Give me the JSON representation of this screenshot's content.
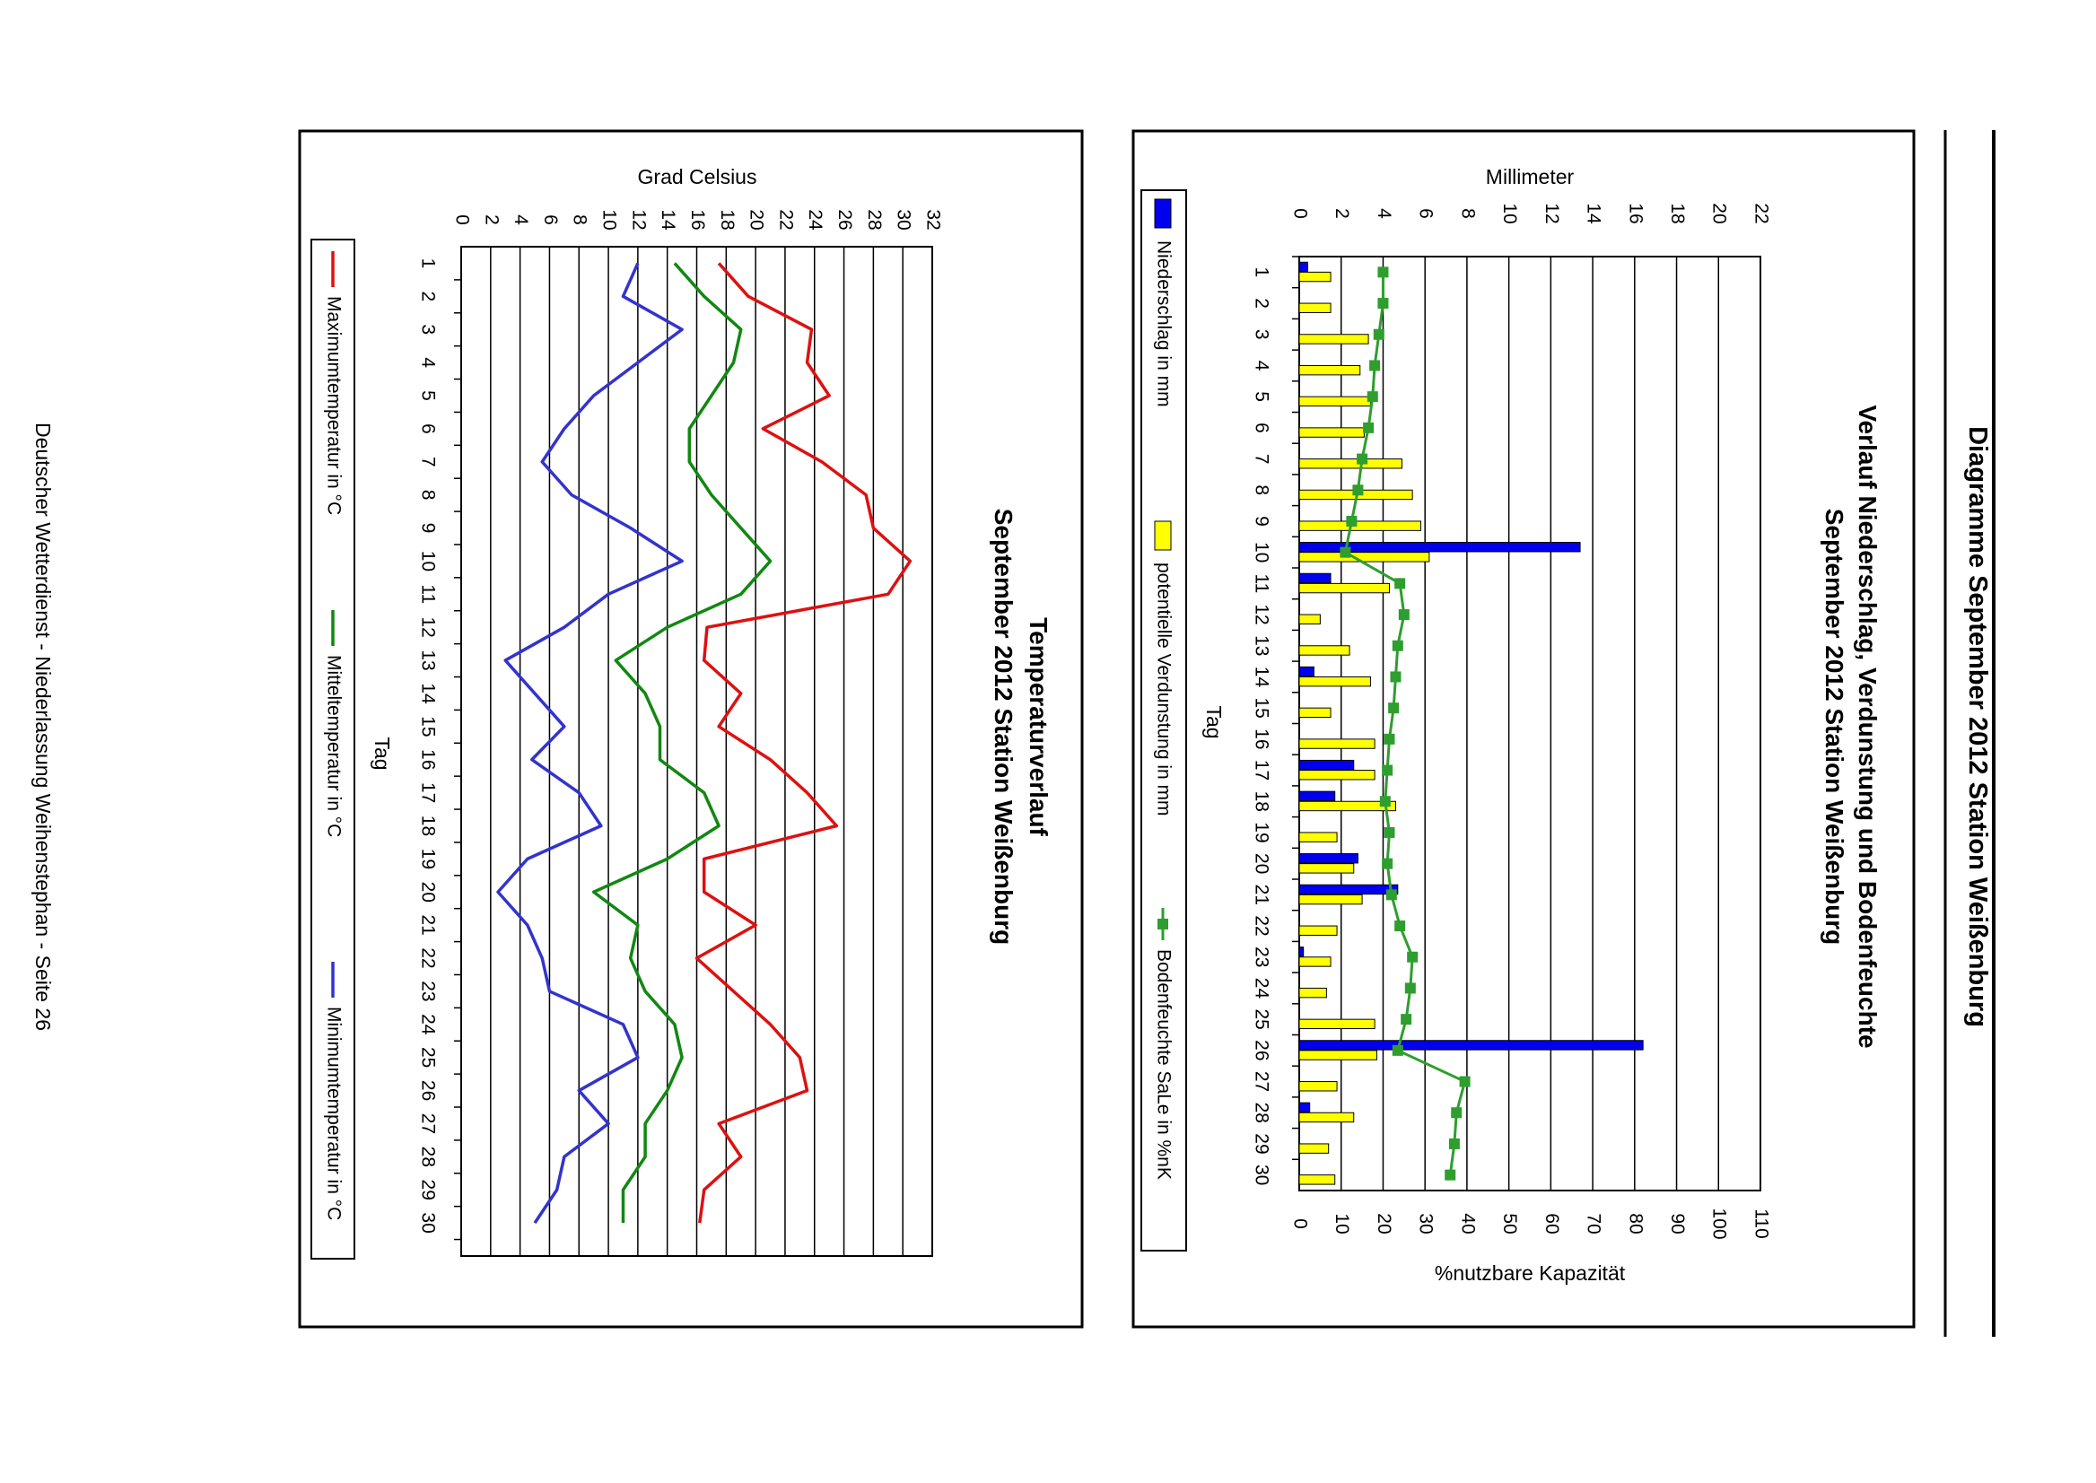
{
  "page": {
    "main_title": "Diagramme September 2012 Station Weißenburg",
    "footer": "Deutscher Wetterdienst - Niederlassung Weihenstephan - Seite 26"
  },
  "chart_data": [
    {
      "type": "bar",
      "title_line1": "Verlauf Niederschlag, Verdunstung und Bodenfeuchte",
      "title_line2": "September 2012 Station Weißenburg",
      "xlabel": "Tag",
      "ylabel_left": "Millimeter",
      "ylabel_right": "%nutzbare Kapazität",
      "categories": [
        "1",
        "2",
        "3",
        "4",
        "5",
        "6",
        "7",
        "8",
        "9",
        "10",
        "11",
        "12",
        "13",
        "14",
        "15",
        "16",
        "17",
        "18",
        "19",
        "20",
        "21",
        "22",
        "23",
        "24",
        "25",
        "26",
        "27",
        "28",
        "29",
        "30"
      ],
      "ylim_left": [
        0,
        22
      ],
      "yticks_left": [
        "0",
        "2",
        "4",
        "6",
        "8",
        "10",
        "12",
        "14",
        "16",
        "18",
        "20",
        "22"
      ],
      "ylim_right": [
        0,
        110
      ],
      "yticks_right": [
        "0",
        "10",
        "20",
        "30",
        "40",
        "50",
        "60",
        "70",
        "80",
        "90",
        "100",
        "110"
      ],
      "series": [
        {
          "name": "Niederschlag in mm",
          "axis": "left",
          "color": "#0000ee",
          "values": [
            0.4,
            0,
            0,
            0,
            0,
            0,
            0,
            0,
            0,
            13.4,
            1.5,
            0,
            0,
            0.7,
            0,
            0,
            2.6,
            1.7,
            0,
            2.8,
            4.7,
            0,
            0.2,
            0,
            0,
            16.4,
            0,
            0.5,
            0,
            0
          ]
        },
        {
          "name": "potentielle Verdunstung in mm",
          "axis": "left",
          "color": "#ffff00",
          "values": [
            1.5,
            1.5,
            3.3,
            2.9,
            3.4,
            3.1,
            4.9,
            5.4,
            5.8,
            6.2,
            4.3,
            1.0,
            2.4,
            3.4,
            1.5,
            3.6,
            3.6,
            4.6,
            1.8,
            2.6,
            3.0,
            1.8,
            1.5,
            1.3,
            3.6,
            3.7,
            1.8,
            2.6,
            1.4,
            1.7
          ]
        },
        {
          "name": "Bodenfeuchte SaLe in %nK",
          "axis": "right",
          "color": "#2e9e2e",
          "values": [
            20,
            20,
            19,
            18,
            17.5,
            16.5,
            15,
            14,
            12.5,
            11,
            24,
            25,
            23.5,
            23,
            22.5,
            21.5,
            21,
            20.5,
            21.5,
            21,
            22,
            24,
            27,
            26.5,
            25.5,
            23.5,
            39.5,
            37.5,
            37,
            36
          ]
        }
      ]
    },
    {
      "type": "line",
      "title_line1": "Temperaturverlauf",
      "title_line2": "September 2012 Station Weißenburg",
      "xlabel": "Tag",
      "ylabel": "Grad Celsius",
      "categories": [
        "1",
        "2",
        "3",
        "4",
        "5",
        "6",
        "7",
        "8",
        "9",
        "10",
        "11",
        "12",
        "13",
        "14",
        "15",
        "16",
        "17",
        "18",
        "19",
        "20",
        "21",
        "22",
        "23",
        "24",
        "25",
        "26",
        "27",
        "28",
        "29",
        "30"
      ],
      "ylim": [
        0,
        32
      ],
      "yticks": [
        "0",
        "2",
        "4",
        "6",
        "8",
        "10",
        "12",
        "14",
        "16",
        "18",
        "20",
        "22",
        "24",
        "26",
        "28",
        "30",
        "32"
      ],
      "series": [
        {
          "name": "Maximumtemperatur in °C",
          "color": "#dd1111",
          "values": [
            17.5,
            19.5,
            23.8,
            23.5,
            25,
            20.5,
            24.5,
            27.5,
            28,
            30.5,
            29,
            16.7,
            16.5,
            19,
            17.5,
            21,
            23.5,
            25.5,
            16.5,
            16.5,
            20,
            16,
            18.5,
            21,
            23,
            23.5,
            17.5,
            19,
            16.5,
            16.2
          ]
        },
        {
          "name": "Mitteltemperatur in °C",
          "color": "#118811",
          "values": [
            14.5,
            16.5,
            19,
            18.5,
            17,
            15.5,
            15.5,
            17,
            19,
            21,
            19,
            14,
            10.5,
            12.5,
            13.5,
            13.5,
            16.5,
            17.5,
            14,
            9,
            12,
            11.5,
            12.5,
            14.5,
            15,
            14,
            12.5,
            12.5,
            11,
            11
          ]
        },
        {
          "name": "Minimumtemperatur in °C",
          "color": "#3333cc",
          "values": [
            12,
            11,
            15,
            12,
            9,
            7,
            5.5,
            7.5,
            11.5,
            15,
            10,
            7,
            3,
            5,
            7,
            4.8,
            8,
            9.5,
            4.5,
            2.5,
            4.5,
            5.5,
            6,
            11,
            12,
            8,
            10,
            7,
            6.5,
            5
          ]
        }
      ]
    }
  ]
}
